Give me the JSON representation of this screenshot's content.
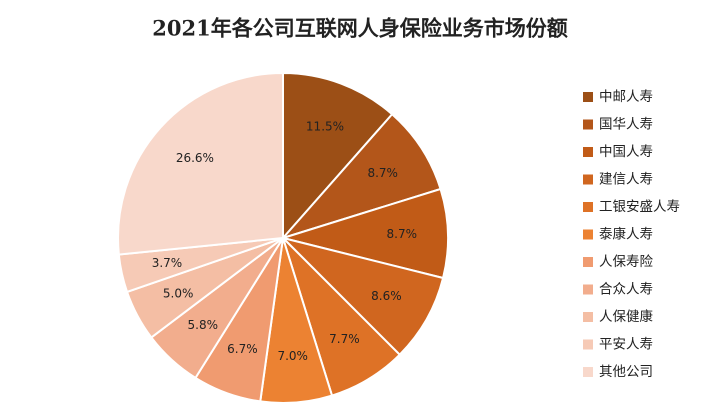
{
  "chart_data": {
    "type": "pie",
    "title": "2021年各公司互联网人身保险业务市场份额",
    "categories": [
      "中邮人寿",
      "国华人寿",
      "中国人寿",
      "建信人寿",
      "工银安盛人寿",
      "泰康人寿",
      "人保寿险",
      "合众人寿",
      "人保健康",
      "平安人寿",
      "其他公司"
    ],
    "values": [
      11.5,
      8.7,
      8.7,
      8.6,
      7.7,
      7.0,
      6.7,
      5.8,
      5.0,
      3.7,
      26.6
    ],
    "value_labels": [
      "11.5%",
      "8.7%",
      "8.7%",
      "8.6%",
      "7.7%",
      "7.0%",
      "6.7%",
      "5.8%",
      "5.0%",
      "3.7%",
      "26.6%"
    ],
    "colors": [
      "#9c4f16",
      "#b3561a",
      "#c15b17",
      "#d0661f",
      "#de7226",
      "#ec8232",
      "#f09b70",
      "#f2ad8d",
      "#f4bea4",
      "#f6cab6",
      "#f8d8cb"
    ],
    "legend": "right"
  }
}
